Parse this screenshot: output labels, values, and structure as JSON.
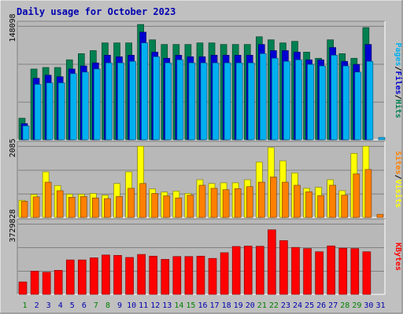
{
  "title": "Daily usage for October 2023",
  "colors": {
    "background": "#c0c0c0",
    "panel": "#b8b8b8",
    "title": "#0000b0",
    "hits": "#008050",
    "files": "#0000d0",
    "pages": "#00b0f0",
    "visits": "#ffff00",
    "sites": "#ff8000",
    "kbytes": "#ff0000",
    "day_normal": "#0000b0",
    "day_weekend": "#008000"
  },
  "chart_data": [
    {
      "type": "bar",
      "panel": "hits",
      "max_label": "148098",
      "legend": [
        "Pages",
        "/",
        "Files",
        "/",
        "Hits"
      ],
      "ylim": [
        0,
        148098
      ],
      "categories": [
        "1",
        "2",
        "3",
        "4",
        "5",
        "6",
        "7",
        "8",
        "9",
        "10",
        "11",
        "12",
        "13",
        "14",
        "15",
        "16",
        "17",
        "18",
        "19",
        "20",
        "21",
        "22",
        "23",
        "24",
        "25",
        "26",
        "27",
        "28",
        "29",
        "30",
        "31"
      ],
      "series": [
        {
          "name": "Hits",
          "values": [
            28000,
            92000,
            94000,
            94000,
            104000,
            112000,
            116000,
            126000,
            126000,
            126000,
            150000,
            130000,
            124000,
            124000,
            124000,
            126000,
            126000,
            124000,
            124000,
            124000,
            134000,
            130000,
            126000,
            128000,
            114000,
            106000,
            130000,
            112000,
            106000,
            146000,
            0
          ]
        },
        {
          "name": "Files",
          "values": [
            21000,
            80000,
            84000,
            82000,
            92000,
            96000,
            100000,
            110000,
            108000,
            110000,
            140000,
            114000,
            106000,
            110000,
            108000,
            108000,
            110000,
            110000,
            110000,
            110000,
            124000,
            116000,
            116000,
            114000,
            104000,
            104000,
            120000,
            102000,
            98000,
            124000,
            0
          ]
        },
        {
          "name": "Pages",
          "values": [
            18000,
            72000,
            74000,
            74000,
            86000,
            88000,
            92000,
            100000,
            100000,
            102000,
            126000,
            108000,
            100000,
            104000,
            100000,
            100000,
            100000,
            100000,
            100000,
            100000,
            112000,
            106000,
            102000,
            104000,
            98000,
            96000,
            110000,
            96000,
            88000,
            102000,
            3000
          ]
        }
      ]
    },
    {
      "type": "bar",
      "panel": "visits",
      "max_label": "2085",
      "legend": [
        "Sites",
        "/",
        "Visits"
      ],
      "ylim": [
        0,
        2085
      ],
      "categories": [
        "1",
        "2",
        "3",
        "4",
        "5",
        "6",
        "7",
        "8",
        "9",
        "10",
        "11",
        "12",
        "13",
        "14",
        "15",
        "16",
        "17",
        "18",
        "19",
        "20",
        "21",
        "22",
        "23",
        "24",
        "25",
        "26",
        "27",
        "28",
        "29",
        "30",
        "31"
      ],
      "series": [
        {
          "name": "Visits",
          "values": [
            500,
            670,
            1330,
            930,
            680,
            680,
            700,
            650,
            990,
            1330,
            2080,
            830,
            740,
            770,
            700,
            1100,
            990,
            1010,
            1010,
            1100,
            1620,
            2040,
            1650,
            1300,
            850,
            880,
            1100,
            780,
            1870,
            2080,
            0
          ]
        },
        {
          "name": "Sites",
          "values": [
            470,
            600,
            1030,
            780,
            590,
            610,
            570,
            550,
            610,
            850,
            990,
            700,
            630,
            570,
            650,
            940,
            850,
            810,
            840,
            900,
            1030,
            1180,
            1030,
            940,
            750,
            640,
            940,
            650,
            1270,
            1400,
            90
          ]
        }
      ]
    },
    {
      "type": "bar",
      "panel": "kbytes",
      "max_label": "3729828",
      "legend": [
        "KBytes"
      ],
      "ylim": [
        0,
        3729828
      ],
      "categories": [
        "1",
        "2",
        "3",
        "4",
        "5",
        "6",
        "7",
        "8",
        "9",
        "10",
        "11",
        "12",
        "13",
        "14",
        "15",
        "16",
        "17",
        "18",
        "19",
        "20",
        "21",
        "22",
        "23",
        "24",
        "25",
        "26",
        "27",
        "28",
        "29",
        "30",
        "31"
      ],
      "series": [
        {
          "name": "KBytes",
          "values": [
            660000,
            1230000,
            1170000,
            1270000,
            1820000,
            1820000,
            1930000,
            2080000,
            2060000,
            1950000,
            2110000,
            2020000,
            1850000,
            2000000,
            2000000,
            2020000,
            1900000,
            2200000,
            2530000,
            2550000,
            2540000,
            3410000,
            2840000,
            2480000,
            2420000,
            2250000,
            2560000,
            2440000,
            2420000,
            2250000,
            0
          ]
        }
      ]
    }
  ],
  "weekend_days": [
    1,
    7,
    8,
    14,
    15,
    21,
    22,
    28,
    29
  ]
}
